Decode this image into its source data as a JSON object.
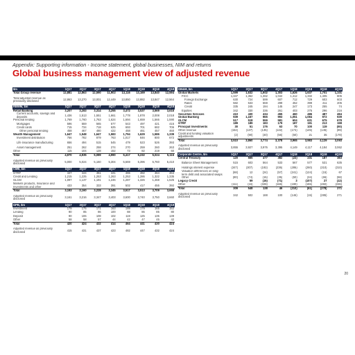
{
  "header": {
    "subtitle": "Appendix: Supporting information - Income statement, global businesses, NIM and returns",
    "title": "Global business management view of adjusted revenue"
  },
  "page_number": "20",
  "colors": {
    "accent": "#d41010",
    "header_bg": "#1d2b4a"
  },
  "left": {
    "groups": [
      {
        "header": [
          "$m",
          "1Q17",
          "2Q17",
          "3Q17",
          "4Q17",
          "1Q18",
          "2Q18",
          "3Q18",
          "4Q18"
        ],
        "rows": [
          {
            "label": "Total Group revenue",
            "values": [
              "12,881",
              "12,863",
              "12,590",
              "11,902",
              "13,116",
              "13,169",
              "13,840",
              "12,594"
            ],
            "style": "bold"
          },
          {
            "label": "",
            "values": [
              "",
              "",
              "",
              "",
              "",
              "",
              "",
              ""
            ],
            "style": "gap"
          },
          {
            "label": "Total adjusted revenue as previously disclosed",
            "values": [
              "12,863",
              "13,270",
              "13,001",
              "12,449",
              "13,850",
              "13,882",
              "13,847",
              "12,564"
            ],
            "style": "tall"
          }
        ]
      },
      {
        "header": [
          "RBWM, $m",
          "1Q17",
          "2Q17",
          "3Q17",
          "4Q17",
          "1Q18",
          "2Q18",
          "3Q18",
          "4Q18"
        ],
        "rows": [
          {
            "label": "Retail Banking",
            "values": [
              "3,207",
              "3,283",
              "3,314",
              "3,255",
              "3,472",
              "3,537",
              "3,569",
              "3,616"
            ],
            "style": "bold"
          },
          {
            "label": "Current accounts, savings and deposits",
            "values": [
              "1,436",
              "1,513",
              "1,551",
              "1,661",
              "1,778",
              "1,878",
              "2,008",
              "2,018"
            ],
            "style": "tall ind"
          },
          {
            "label": "Personal lending",
            "values": [
              "1,769",
              "1,760",
              "1,763",
              "1,624",
              "1,694",
              "1,659",
              "1,566",
              "1,590"
            ],
            "style": "norm"
          },
          {
            "label": "Mortgages",
            "values": [
              "596",
              "559",
              "565",
              "577",
              "543",
              "497",
              "421",
              "415"
            ],
            "style": "norm ind"
          },
          {
            "label": "Credit cards",
            "values": [
              "715",
              "734",
              "718",
              "625",
              "693",
              "701",
              "682",
              "706"
            ],
            "style": "norm ind"
          },
          {
            "label": "Other personal lending",
            "values": [
              "458",
              "467",
              "480",
              "422",
              "458",
              "461",
              "457",
              "460"
            ],
            "style": "norm ind2"
          },
          {
            "label": "Wealth Management",
            "values": [
              "1,647",
              "1,548",
              "1,647",
              "1,583",
              "1,794",
              "1,629",
              "1,586",
              "1,339"
            ],
            "style": "bold"
          },
          {
            "label": "Investment distribution",
            "values": [
              "756",
              "782",
              "879",
              "763",
              "1,017",
              "846",
              "800",
              "672"
            ],
            "style": "norm ind"
          },
          {
            "label": "Life insurance manufacturing",
            "values": [
              "656",
              "494",
              "515",
              "545",
              "479",
              "523",
              "526",
              "393"
            ],
            "style": "tall ind"
          },
          {
            "label": "Asset management",
            "values": [
              "251",
              "262",
              "258",
              "274",
              "270",
              "259",
              "260",
              "263"
            ],
            "style": "norm ind"
          },
          {
            "label": "Other",
            "values": [
              "115",
              "104",
              "128",
              "152",
              "73",
              "82",
              "219",
              "60"
            ],
            "style": "norm"
          },
          {
            "label": "Total",
            "values": [
              "4,970",
              "4,935",
              "5,089",
              "4,990",
              "5,417",
              "5,232",
              "5,024",
              "5,116"
            ],
            "style": "bold bt"
          },
          {
            "label": "",
            "values": [
              "",
              "",
              "",
              "",
              "",
              "",
              "",
              ""
            ],
            "style": "gap"
          },
          {
            "label": "Adjusted revenue as previously disclosed",
            "values": [
              "5,000",
              "5,024",
              "5,160",
              "5,304",
              "5,669",
              "5,396",
              "5,760",
              "5,410"
            ],
            "style": "tall"
          }
        ]
      },
      {
        "header": [
          "CMB, $m",
          "1Q17",
          "2Q17",
          "3Q17",
          "4Q17",
          "1Q18",
          "2Q18",
          "3Q18",
          "4Q18"
        ],
        "rows": [
          {
            "label": "GTRF",
            "values": [
              "447",
              "444",
              "451",
              "441",
              "465",
              "482",
              "464",
              "464"
            ],
            "style": "norm"
          },
          {
            "label": "Credit and Lending",
            "values": [
              "1,215",
              "1,225",
              "1,253",
              "1,263",
              "1,253",
              "1,286",
              "1,322",
              "1,335"
            ],
            "style": "norm"
          },
          {
            "label": "GLCM",
            "values": [
              "1,097",
              "1,137",
              "1,191",
              "1,246",
              "1,287",
              "1,326",
              "1,468",
              "1,525"
            ],
            "style": "norm"
          },
          {
            "label": "Markets products, Insurance and Investments and other",
            "values": [
              "433",
              "354",
              "333",
              "391",
              "502",
              "417",
              "455",
              "392"
            ],
            "style": "tall"
          },
          {
            "label": "Total",
            "values": [
              "3,193",
              "3,160",
              "3,228",
              "3,345",
              "3,517",
              "3,513",
              "3,709",
              "3,666"
            ],
            "style": "bold bt"
          },
          {
            "label": "",
            "values": [
              "",
              "",
              "",
              "",
              "",
              "",
              "",
              ""
            ],
            "style": "gap"
          },
          {
            "label": "Adjusted revenue as previously disclosed",
            "values": [
              "3,161",
              "3,216",
              "3,347",
              "3,403",
              "3,600",
              "3,740",
              "3,750",
              "3,660"
            ],
            "style": "tall"
          }
        ]
      },
      {
        "header": [
          "GPB, $m",
          "1Q17",
          "2Q17",
          "3Q17",
          "4Q17",
          "1Q18",
          "2Q18",
          "3Q18",
          "4Q18"
        ],
        "rows": [
          {
            "label": "Investment",
            "values": [
              "179",
              "175",
              "171",
              "163",
              "189",
              "179",
              "165",
              "152"
            ],
            "style": "norm"
          },
          {
            "label": "Lending",
            "values": [
              "90",
              "85",
              "86",
              "100",
              "88",
              "86",
              "85",
              "80"
            ],
            "style": "norm"
          },
          {
            "label": "Deposit",
            "values": [
              "90",
              "106",
              "108",
              "102",
              "119",
              "125",
              "135",
              "139"
            ],
            "style": "norm"
          },
          {
            "label": "Other",
            "values": [
              "58",
              "58",
              "57",
              "44",
              "42",
              "47",
              "45",
              "42"
            ],
            "style": "norm"
          },
          {
            "label": "Total",
            "values": [
              "420",
              "424",
              "432",
              "414",
              "464",
              "441",
              "430",
              "424"
            ],
            "style": "bold bt"
          },
          {
            "label": "",
            "values": [
              "",
              "",
              "",
              "",
              "",
              "",
              "",
              ""
            ],
            "style": "gap"
          },
          {
            "label": "Adjusted revenue as previously disclosed",
            "values": [
              "415",
              "431",
              "437",
              "423",
              "482",
              "447",
              "432",
              "424"
            ],
            "style": "tall"
          }
        ]
      }
    ]
  },
  "right": {
    "groups": [
      {
        "header": [
          "GB&M, $m",
          "1Q17",
          "2Q17",
          "3Q17",
          "4Q17",
          "1Q18",
          "2Q18",
          "3Q18",
          "4Q18"
        ],
        "rows": [
          {
            "label": "Global Markets",
            "values": [
              "1,599",
              "1,632",
              "1,602",
              "1,303",
              "1,626",
              "1,637",
              "1,701",
              "1,101"
            ],
            "style": "bold"
          },
          {
            "label": "FICC",
            "values": [
              "1,347",
              "1,362",
              "1,362",
              "1,042",
              "1,412",
              "1,332",
              "1,405",
              "805"
            ],
            "style": "norm ind"
          },
          {
            "label": "Foreign Exchange",
            "values": [
              "630",
              "724",
              "599",
              "607",
              "712",
              "729",
              "603",
              "603"
            ],
            "style": "norm ind2"
          },
          {
            "label": "Rates",
            "values": [
              "582",
              "533",
              "559",
              "299",
              "452",
              "399",
              "411",
              "205"
            ],
            "style": "norm ind2"
          },
          {
            "label": "Credit",
            "values": [
              "335",
              "245",
              "194",
              "145",
              "247",
              "173",
              "255",
              "74"
            ],
            "style": "norm ind2"
          },
          {
            "label": "Equities",
            "values": [
              "342",
              "330",
              "336",
              "261",
              "403",
              "275",
              "296",
              "216"
            ],
            "style": "norm ind"
          },
          {
            "label": "Securities Services",
            "values": [
              "410",
              "430",
              "434",
              "455",
              "460",
              "486",
              "487",
              "484"
            ],
            "style": "bold"
          },
          {
            "label": "Global Banking",
            "values": [
              "939",
              "1,167",
              "965",
              "993",
              "1,051",
              "1,084",
              "972",
              "939"
            ],
            "style": "bold"
          },
          {
            "label": "GLCM",
            "values": [
              "517",
              "518",
              "559",
              "581",
              "604",
              "631",
              "675",
              "678"
            ],
            "style": "bold"
          },
          {
            "label": "GTRF",
            "values": [
              "189",
              "189",
              "183",
              "179",
              "187",
              "191",
              "213",
              "198"
            ],
            "style": "bold"
          },
          {
            "label": "Principal Investments",
            "values": [
              "30",
              "51",
              "176",
              "63",
              "70",
              "100",
              "119",
              "(50)"
            ],
            "style": "bold"
          },
          {
            "label": "Other revenue",
            "values": [
              "(154)",
              "(137)",
              "(135)",
              "(142)",
              "(174)",
              "(145)",
              "(145)",
              "(89)"
            ],
            "style": "norm"
          },
          {
            "label": "Credit and funding valuation adjustments",
            "values": [
              "(2)",
              "(90)",
              "(40)",
              "(56)",
              "(60)",
              "21",
              "35",
              "(178)"
            ],
            "style": "tall"
          },
          {
            "label": "Total",
            "values": [
              "3,510",
              "3,860",
              "3,774",
              "3,378",
              "3,965",
              "3,983",
              "4,129",
              "3,093"
            ],
            "style": "bold bt"
          },
          {
            "label": "",
            "values": [
              "",
              "",
              "",
              "",
              "",
              "",
              "",
              ""
            ],
            "style": "gap"
          },
          {
            "label": "Adjusted revenue as previously disclosed",
            "values": [
              "3,855",
              "3,927",
              "3,976",
              "3,395",
              "4,149",
              "4,117",
              "4,184",
              "3,062"
            ],
            "style": "tall"
          }
        ]
      },
      {
        "header": [
          "Corporate Centre, $m",
          "1Q17",
          "2Q17",
          "3Q17",
          "4Q17",
          "1Q18",
          "2Q18",
          "3Q18",
          "4Q18"
        ],
        "rows": [
          {
            "label": "Central Treasury",
            "values": [
              "120",
              "565",
              "477",
              "382",
              "(22)",
              "231",
              "187",
              "383"
            ],
            "style": "bold"
          },
          {
            "label": "Balance Sheet Management",
            "values": [
              "515",
              "603",
              "564",
              "533",
              "567",
              "577",
              "531",
              "635"
            ],
            "style": "tall ind"
          },
          {
            "label": "Holdings interest expense",
            "values": [
              "(347)",
              "(307)",
              "(192)",
              "(236)",
              "(286)",
              "(260)",
              "(310)",
              "(310)"
            ],
            "style": "norm ind"
          },
          {
            "label": "Valuation differences on long-term debt and associated swaps",
            "values": [
              "(68)",
              "12",
              "(24)",
              "(57)",
              "(241)",
              "(124)",
              "(15)",
              "67"
            ],
            "style": "tall ind"
          },
          {
            "label": "Other",
            "values": [
              "(80)",
              "(74)",
              "(15)",
              "(35)",
              "(50)",
              "(34)",
              "(66)",
              "(58)"
            ],
            "style": "norm ind"
          },
          {
            "label": "Legacy Credit",
            "values": [
              "",
              "59",
              "(16)",
              "(71)",
              "3",
              "(107)",
              "27",
              "(12)"
            ],
            "style": "bold"
          },
          {
            "label": "Other",
            "values": [
              "(111)",
              "(16)",
              "(328)",
              "(166)",
              "(190)",
              "(155)",
              "(482)",
              "(226)"
            ],
            "style": "norm"
          },
          {
            "label": "Total",
            "values": [
              "309",
              "548",
              "138",
              "46",
              "(210)",
              "(61)",
              "(278)",
              "271"
            ],
            "style": "bold bt"
          },
          {
            "label": "",
            "values": [
              "",
              "",
              "",
              "",
              "",
              "",
              "",
              ""
            ],
            "style": "gap"
          },
          {
            "label": "Adjusted revenue as previously disclosed",
            "values": [
              "342",
              "502",
              "188",
              "100",
              "(146)",
              "(15)",
              "(285)",
              "271"
            ],
            "style": "tall"
          }
        ]
      }
    ]
  }
}
